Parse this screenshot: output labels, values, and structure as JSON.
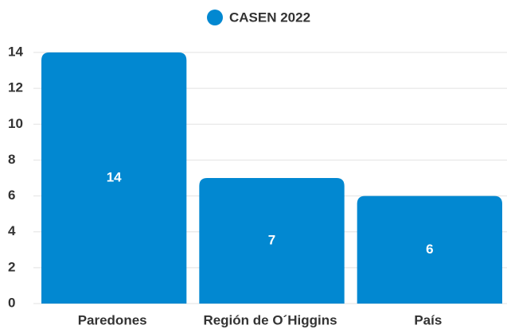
{
  "chart_data": {
    "type": "bar",
    "categories": [
      "Paredones",
      "Región de O´Higgins",
      "País"
    ],
    "series": [
      {
        "name": "CASEN 2022",
        "color": "#0288d1",
        "values": [
          14,
          7,
          6
        ]
      }
    ],
    "ylim": [
      0,
      14
    ],
    "yticks": [
      0,
      2,
      4,
      6,
      8,
      10,
      12,
      14
    ],
    "grid": true,
    "legend": "top"
  }
}
